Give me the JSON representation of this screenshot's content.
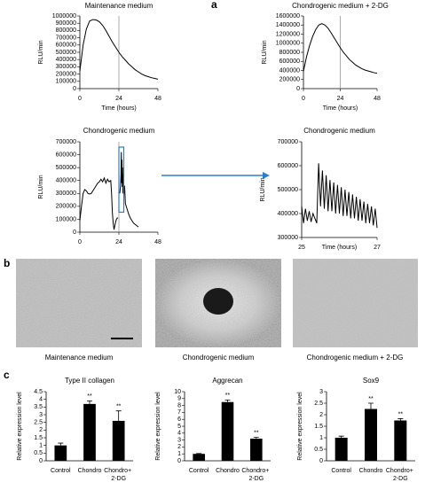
{
  "panel_labels": [
    "a",
    "b",
    "c"
  ],
  "panel_b": {
    "captions": [
      "Maintenance medium",
      "Chondrogenic medium",
      "Chondrogenic medium + 2-DG"
    ]
  },
  "chart_data": [
    {
      "type": "line",
      "title": "Maintenance medium",
      "xlabel": "Time (hours)",
      "ylabel": "RLU/min",
      "color": "#000000",
      "x": [
        0,
        2,
        4,
        6,
        8,
        10,
        12,
        14,
        16,
        18,
        20,
        22,
        24,
        26,
        28,
        30,
        32,
        34,
        36,
        38,
        40,
        42,
        44,
        46,
        48
      ],
      "values": [
        240000,
        600000,
        820000,
        930000,
        950000,
        945000,
        920000,
        870000,
        800000,
        720000,
        640000,
        570000,
        500000,
        440000,
        390000,
        340000,
        300000,
        260000,
        230000,
        200000,
        180000,
        165000,
        150000,
        140000,
        130000
      ],
      "xlim": [
        0,
        48
      ],
      "xticks": [
        0,
        24,
        48
      ],
      "ylim": [
        0,
        1000000
      ],
      "yticks": [
        0,
        100000,
        200000,
        300000,
        400000,
        500000,
        600000,
        700000,
        800000,
        900000,
        1000000
      ],
      "vline": 24
    },
    {
      "type": "line",
      "title": "Chondrogenic medium + 2-DG",
      "xlabel": "Time (hours)",
      "ylabel": "RLU/min",
      "color": "#000000",
      "x": [
        0,
        2,
        4,
        6,
        8,
        10,
        12,
        14,
        16,
        18,
        20,
        22,
        24,
        26,
        28,
        30,
        32,
        34,
        36,
        38,
        40,
        42,
        44,
        46,
        48
      ],
      "values": [
        380000,
        700000,
        950000,
        1150000,
        1300000,
        1400000,
        1430000,
        1400000,
        1330000,
        1230000,
        1120000,
        1010000,
        900000,
        800000,
        720000,
        640000,
        580000,
        520000,
        480000,
        440000,
        410000,
        390000,
        370000,
        350000,
        340000
      ],
      "xlim": [
        0,
        48
      ],
      "xticks": [
        0,
        24,
        48
      ],
      "ylim": [
        0,
        1600000
      ],
      "yticks": [
        0,
        200000,
        400000,
        600000,
        800000,
        1000000,
        1200000,
        1400000,
        1600000
      ],
      "vline": 24
    },
    {
      "type": "line",
      "title": "Chondrogenic medium",
      "ylabel": "RLU/min",
      "color": "#000000",
      "x": [
        0,
        1,
        2,
        3,
        4,
        5,
        6,
        7,
        8,
        9,
        10,
        11,
        12,
        13,
        14,
        15,
        16,
        17,
        18,
        19,
        19.5,
        20,
        20.5,
        21,
        21.5,
        22,
        22.5,
        23,
        23.5,
        24,
        24.5,
        25,
        25.3,
        25.5,
        25.7,
        25.9,
        26.1,
        26.3,
        26.5,
        26.8,
        27,
        27.5,
        28,
        29,
        30,
        31,
        32,
        33,
        34,
        35,
        36
      ],
      "values": [
        90000,
        200000,
        300000,
        330000,
        320000,
        300000,
        295000,
        300000,
        320000,
        340000,
        360000,
        380000,
        390000,
        410000,
        390000,
        420000,
        380000,
        410000,
        390000,
        400000,
        300000,
        150000,
        70000,
        20000,
        50000,
        80000,
        100000,
        110000,
        110000,
        null,
        300000,
        350000,
        450000,
        620000,
        380000,
        560000,
        350000,
        500000,
        300000,
        450000,
        280000,
        360000,
        220000,
        180000,
        140000,
        110000,
        90000,
        70000,
        60000,
        50000,
        40000
      ],
      "xlim": [
        0,
        48
      ],
      "xticks": [
        0,
        24,
        48
      ],
      "ylim": [
        0,
        700000
      ],
      "yticks": [
        0,
        100000,
        200000,
        300000,
        400000,
        500000,
        600000,
        700000
      ],
      "vline": 24,
      "highlight": [
        24,
        27
      ],
      "highlight_color": "#2a7fc9"
    },
    {
      "type": "line",
      "title": "Chondrogenic medium",
      "xlabel": "Time (hours)",
      "ylabel": "RLU/min",
      "color": "#000000",
      "x": [
        25,
        25.05,
        25.1,
        25.15,
        25.2,
        25.25,
        25.3,
        25.35,
        25.4,
        25.45,
        25.5,
        25.55,
        25.6,
        25.65,
        25.7,
        25.75,
        25.8,
        25.85,
        25.9,
        25.95,
        26,
        26.05,
        26.1,
        26.15,
        26.2,
        26.25,
        26.3,
        26.35,
        26.4,
        26.45,
        26.5,
        26.55,
        26.6,
        26.65,
        26.7,
        26.75,
        26.8,
        26.85,
        26.9,
        26.95,
        27
      ],
      "values": [
        430000,
        360000,
        420000,
        370000,
        410000,
        365000,
        400000,
        380000,
        360000,
        610000,
        430000,
        580000,
        420000,
        560000,
        410000,
        540000,
        410000,
        530000,
        400000,
        520000,
        400000,
        510000,
        390000,
        500000,
        390000,
        490000,
        380000,
        480000,
        380000,
        470000,
        370000,
        460000,
        370000,
        450000,
        360000,
        440000,
        360000,
        430000,
        350000,
        420000,
        340000
      ],
      "xlim": [
        25,
        27
      ],
      "xticks": [
        25,
        27
      ],
      "ylim": [
        300000,
        700000
      ],
      "yticks": [
        300000,
        400000,
        500000,
        600000,
        700000
      ]
    },
    {
      "type": "bar",
      "title": "Type II collagen",
      "ylabel": "Relative expression level",
      "color": "#000000",
      "categories": [
        "Control",
        "Chondro",
        "Chondro+ 2-DG"
      ],
      "values": [
        1.0,
        3.7,
        2.6
      ],
      "errors": [
        0.15,
        0.2,
        0.65
      ],
      "significance": [
        null,
        "**",
        "**"
      ],
      "ylim": [
        0,
        4.5
      ],
      "yticks": [
        0,
        0.5,
        1,
        1.5,
        2,
        2.5,
        3,
        3.5,
        4,
        4.5
      ]
    },
    {
      "type": "bar",
      "title": "Aggrecan",
      "ylabel": "Relative expression level",
      "color": "#000000",
      "categories": [
        "Control",
        "Chondro",
        "Chondro+ 2-DG"
      ],
      "values": [
        1.0,
        8.5,
        3.2
      ],
      "errors": [
        0.05,
        0.3,
        0.2
      ],
      "significance": [
        null,
        "**",
        "**"
      ],
      "ylim": [
        0,
        10
      ],
      "yticks": [
        0,
        1,
        2,
        3,
        4,
        5,
        6,
        7,
        8,
        9,
        10
      ]
    },
    {
      "type": "bar",
      "title": "Sox9",
      "ylabel": "Relative expression level",
      "color": "#000000",
      "categories": [
        "Control",
        "Chondro",
        "Chondro+ 2-DG"
      ],
      "values": [
        1.0,
        2.25,
        1.75
      ],
      "errors": [
        0.07,
        0.25,
        0.08
      ],
      "significance": [
        null,
        "**",
        "**"
      ],
      "ylim": [
        0,
        3
      ],
      "yticks": [
        0,
        0.5,
        1,
        1.5,
        2,
        2.5,
        3
      ]
    }
  ]
}
